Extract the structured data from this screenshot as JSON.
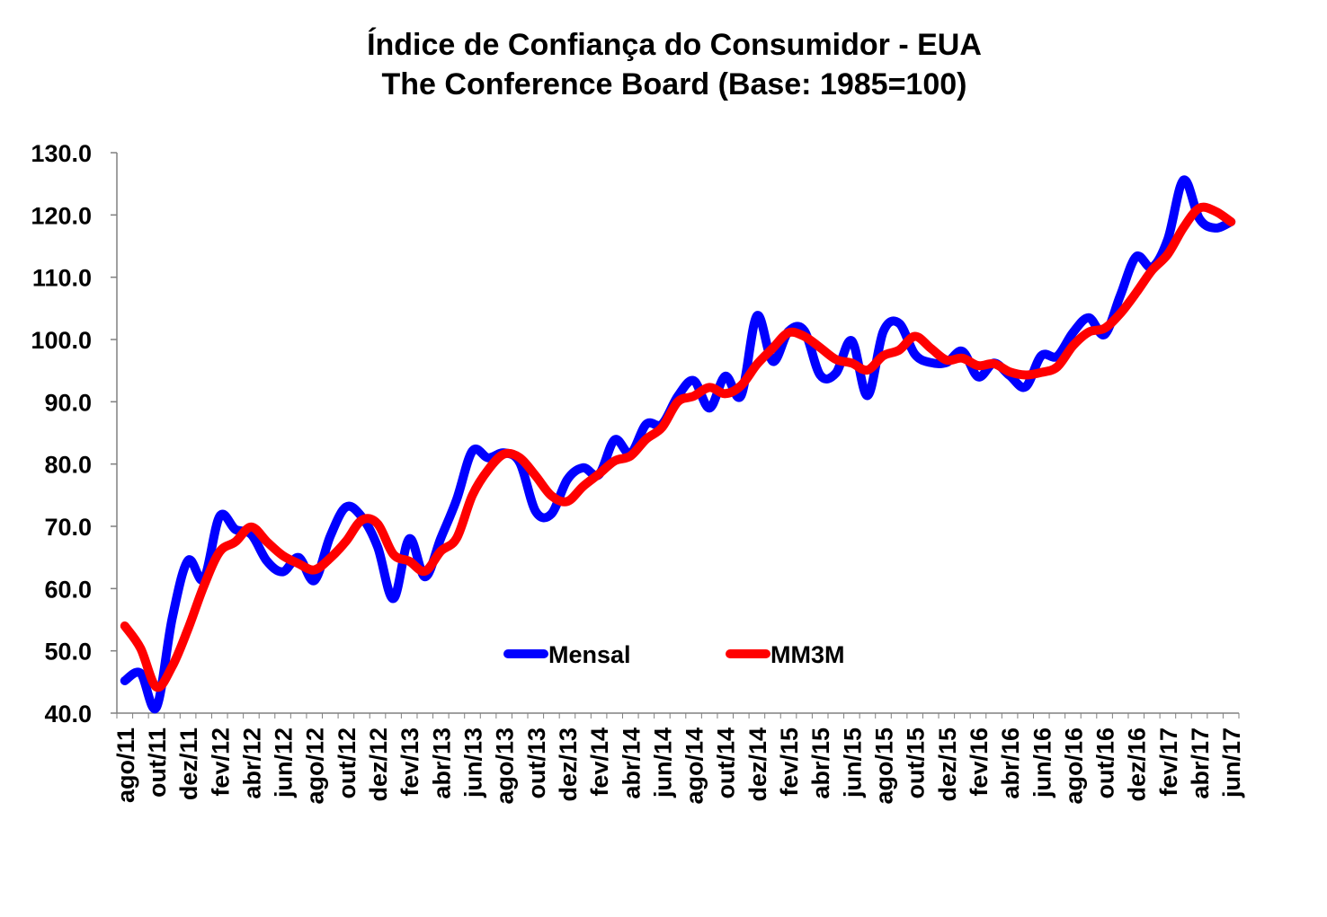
{
  "chart_data": {
    "type": "line",
    "title": "Índice de Confiança do Consumidor - EUA",
    "subtitle": "The Conference Board (Base: 1985=100)",
    "xlabel": "",
    "ylabel": "",
    "ylim": [
      40,
      130
    ],
    "y_ticks": [
      "40.0",
      "50.0",
      "60.0",
      "70.0",
      "80.0",
      "90.0",
      "100.0",
      "110.0",
      "120.0",
      "130.0"
    ],
    "x_tick_labels": [
      "ago/11",
      "out/11",
      "dez/11",
      "fev/12",
      "abr/12",
      "jun/12",
      "ago/12",
      "out/12",
      "dez/12",
      "fev/13",
      "abr/13",
      "jun/13",
      "ago/13",
      "out/13",
      "dez/13",
      "fev/14",
      "abr/14",
      "jun/14",
      "ago/14",
      "out/14",
      "dez/14",
      "fev/15",
      "abr/15",
      "jun/15",
      "ago/15",
      "out/15",
      "dez/15",
      "fev/16",
      "abr/16",
      "jun/16",
      "ago/16",
      "out/16",
      "dez/16",
      "fev/17",
      "abr/17",
      "jun/17"
    ],
    "x": [
      "ago/11",
      "set/11",
      "out/11",
      "nov/11",
      "dez/11",
      "jan/12",
      "fev/12",
      "mar/12",
      "abr/12",
      "mai/12",
      "jun/12",
      "jul/12",
      "ago/12",
      "set/12",
      "out/12",
      "nov/12",
      "dez/12",
      "jan/13",
      "fev/13",
      "mar/13",
      "abr/13",
      "mai/13",
      "jun/13",
      "jul/13",
      "ago/13",
      "set/13",
      "out/13",
      "nov/13",
      "dez/13",
      "jan/14",
      "fev/14",
      "mar/14",
      "abr/14",
      "mai/14",
      "jun/14",
      "jul/14",
      "ago/14",
      "set/14",
      "out/14",
      "nov/14",
      "dez/14",
      "jan/15",
      "fev/15",
      "mar/15",
      "abr/15",
      "mai/15",
      "jun/15",
      "jul/15",
      "ago/15",
      "set/15",
      "out/15",
      "nov/15",
      "dez/15",
      "jan/16",
      "fev/16",
      "mar/16",
      "abr/16",
      "mai/16",
      "jun/16",
      "jul/16",
      "ago/16",
      "set/16",
      "out/16",
      "nov/16",
      "dez/16",
      "jan/17",
      "fev/17",
      "mar/17",
      "abr/17",
      "mai/17",
      "jun/17"
    ],
    "series": [
      {
        "name": "Mensal",
        "color": "#0000ff",
        "values": [
          45.2,
          46.4,
          40.9,
          55.2,
          64.5,
          61.5,
          71.6,
          69.5,
          68.7,
          64.4,
          62.7,
          65.0,
          61.3,
          68.4,
          73.1,
          71.5,
          66.7,
          58.4,
          68.0,
          61.9,
          68.1,
          74.3,
          82.1,
          81.0,
          81.8,
          80.2,
          72.4,
          72.0,
          77.5,
          79.4,
          78.3,
          83.9,
          81.7,
          86.4,
          86.4,
          90.9,
          93.4,
          89.0,
          94.1,
          91.0,
          103.8,
          96.5,
          101.3,
          101.4,
          94.3,
          94.6,
          99.8,
          91.0,
          101.3,
          102.6,
          97.6,
          96.3,
          96.3,
          98.1,
          94.0,
          96.2,
          94.2,
          92.4,
          97.4,
          97.3,
          101.1,
          103.5,
          100.8,
          107.1,
          113.3,
          111.6,
          116.1,
          125.6,
          119.4,
          117.9,
          118.9
        ]
      },
      {
        "name": "MM3M",
        "color": "#ff0000",
        "values": [
          54.0,
          50.4,
          44.2,
          47.5,
          53.5,
          60.4,
          65.9,
          67.5,
          69.9,
          67.5,
          65.3,
          64.0,
          63.0,
          64.9,
          67.6,
          71.0,
          70.4,
          65.5,
          64.4,
          62.8,
          66.0,
          68.1,
          75.0,
          79.1,
          81.6,
          81.0,
          78.1,
          74.9,
          74.0,
          76.4,
          78.4,
          80.5,
          81.3,
          84.0,
          85.9,
          90.0,
          90.9,
          92.3,
          91.3,
          92.6,
          96.0,
          98.6,
          101.1,
          100.5,
          98.7,
          96.8,
          96.2,
          95.1,
          97.4,
          98.3,
          100.5,
          98.6,
          96.7,
          97.0,
          95.8,
          96.1,
          94.8,
          94.3,
          94.7,
          95.6,
          99.0,
          101.2,
          101.8,
          104.2,
          107.5,
          111.1,
          113.7,
          118.0,
          121.1,
          120.6,
          118.9
        ]
      }
    ],
    "legend": {
      "placement": "inside-center",
      "entries": [
        "Mensal",
        "MM3M"
      ]
    },
    "grid": false
  }
}
